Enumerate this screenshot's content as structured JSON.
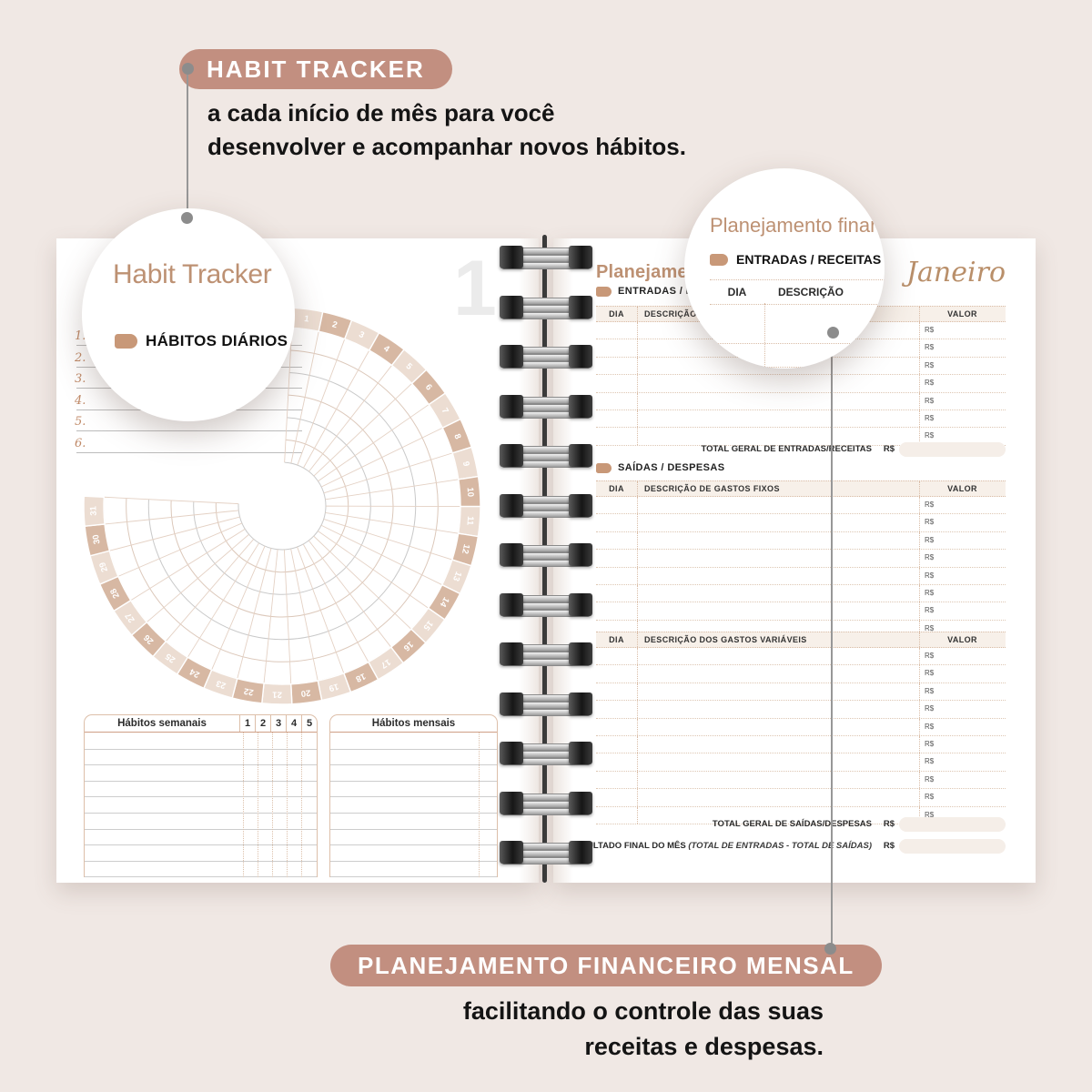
{
  "colors": {
    "background": "#f0e8e4",
    "accent_rose": "#c28f80",
    "heading_tan": "#bd9173",
    "tag_tan": "#c89878"
  },
  "callout_top": {
    "label": "HABIT TRACKER",
    "description_lines": [
      "a cada início de mês para você",
      "desenvolver e acompanhar novos hábitos."
    ]
  },
  "callout_bottom": {
    "label": "PLANEJAMENTO FINANCEIRO MENSAL",
    "description_lines": [
      "facilitando o controle das suas",
      "receitas e despesas."
    ]
  },
  "magnifier_left": {
    "title": "Habit Tracker",
    "section_label": "HÁBITOS DIÁRIOS"
  },
  "magnifier_right": {
    "title": "Planejamento finance",
    "section_label": "ENTRADAS / RECEITAS",
    "mini_table_headers": [
      "DIA",
      "DESCRIÇÃO"
    ]
  },
  "left_page": {
    "page_number": "1",
    "habit_list_numbers": [
      "1.",
      "2.",
      "3.",
      "4.",
      "5.",
      "6."
    ],
    "radial_days": [
      "1",
      "2",
      "3",
      "4",
      "5",
      "6",
      "7",
      "8",
      "9",
      "10",
      "11",
      "12",
      "13",
      "14",
      "15",
      "16",
      "17",
      "18",
      "19",
      "20",
      "21",
      "22",
      "23",
      "24",
      "25",
      "26",
      "27",
      "28",
      "29",
      "30",
      "31"
    ],
    "weekly_table": {
      "title": "Hábitos semanais",
      "columns": [
        "1",
        "2",
        "3",
        "4",
        "5"
      ],
      "blank_rows": 9
    },
    "monthly_table": {
      "title": "Hábitos mensais",
      "blank_rows": 9
    }
  },
  "right_page": {
    "title": "Planejamento financeiro",
    "month": "Janeiro",
    "currency": "R$",
    "entradas": {
      "label": "ENTRADAS / RECEITAS",
      "headers": [
        "DIA",
        "DESCRIÇÃO",
        "VALOR"
      ],
      "row_count": 7,
      "total_label": "TOTAL GERAL DE ENTRADAS/RECEITAS"
    },
    "saidas": {
      "label": "SAÍDAS / DESPESAS",
      "fixed": {
        "headers": [
          "DIA",
          "DESCRIÇÃO DE GASTOS FIXOS",
          "VALOR"
        ],
        "row_count": 8
      },
      "variable": {
        "headers": [
          "DIA",
          "DESCRIÇÃO DOS GASTOS VARIÁVEIS",
          "VALOR"
        ],
        "row_count": 10
      },
      "total_label": "TOTAL GERAL DE SAÍDAS/DESPESAS"
    },
    "resultado": {
      "label": "RESULTADO FINAL DO MÊS",
      "formula": "(TOTAL DE ENTRADAS - TOTAL DE SAÍDAS)"
    }
  }
}
